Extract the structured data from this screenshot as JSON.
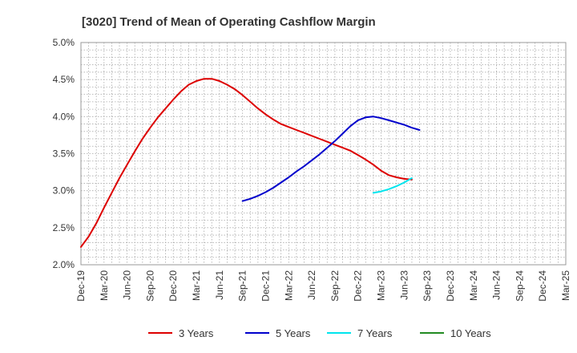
{
  "chart_data": {
    "type": "line",
    "title": "[3020]  Trend of Mean of Operating Cashflow Margin",
    "xlabel": "",
    "ylabel": "",
    "x_ticks": [
      "Dec-19",
      "Mar-20",
      "Jun-20",
      "Sep-20",
      "Dec-20",
      "Mar-21",
      "Jun-21",
      "Sep-21",
      "Dec-21",
      "Mar-22",
      "Jun-22",
      "Sep-22",
      "Dec-22",
      "Mar-23",
      "Jun-23",
      "Sep-23",
      "Dec-23",
      "Mar-24",
      "Jun-24",
      "Sep-24",
      "Dec-24",
      "Mar-25"
    ],
    "y_ticks": [
      "2.0%",
      "2.5%",
      "3.0%",
      "3.5%",
      "4.0%",
      "4.5%",
      "5.0%"
    ],
    "ylim": [
      2.0,
      5.0
    ],
    "grid": true,
    "legend_position": "bottom",
    "series": [
      {
        "name": "3 Years",
        "color": "#dd0000",
        "start_index": 0,
        "values": [
          2.24,
          2.38,
          2.56,
          2.77,
          2.97,
          3.17,
          3.35,
          3.53,
          3.7,
          3.85,
          3.99,
          4.11,
          4.23,
          4.34,
          4.43,
          4.48,
          4.51,
          4.51,
          4.48,
          4.43,
          4.37,
          4.29,
          4.2,
          4.11,
          4.03,
          3.96,
          3.9,
          3.86,
          3.82,
          3.78,
          3.74,
          3.7,
          3.66,
          3.62,
          3.58,
          3.54,
          3.48,
          3.42,
          3.35,
          3.27,
          3.21,
          3.18,
          3.16,
          3.15
        ]
      },
      {
        "name": "5 Years",
        "color": "#0000cc",
        "start_index": 21,
        "values": [
          2.86,
          2.89,
          2.93,
          2.98,
          3.04,
          3.11,
          3.18,
          3.26,
          3.33,
          3.41,
          3.49,
          3.58,
          3.67,
          3.77,
          3.87,
          3.95,
          3.99,
          4.0,
          3.98,
          3.95,
          3.92,
          3.89,
          3.85,
          3.82
        ]
      },
      {
        "name": "7 Years",
        "color": "#00e5ee",
        "start_index": 38,
        "values": [
          2.97,
          2.99,
          3.02,
          3.06,
          3.11,
          3.17
        ]
      },
      {
        "name": "10 Years",
        "color": "#228b22",
        "start_index": 0,
        "values": []
      }
    ]
  }
}
